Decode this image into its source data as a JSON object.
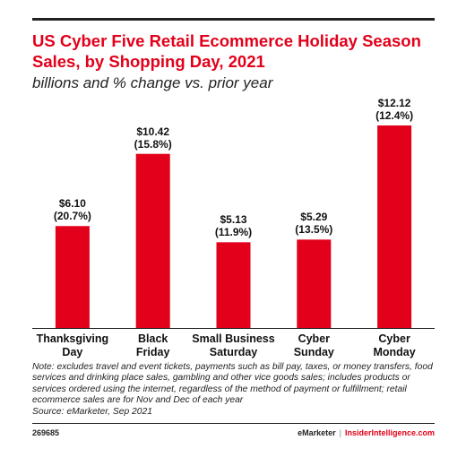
{
  "chart_data": {
    "type": "bar",
    "title": "US Cyber Five Retail Ecommerce Holiday Season Sales, by Shopping Day, 2021",
    "subtitle": "billions and % change vs. prior year",
    "categories": [
      "Thanksgiving\nDay",
      "Black\nFriday",
      "Small Business\nSaturday",
      "Cyber\nSunday",
      "Cyber\nMonday"
    ],
    "values": [
      6.1,
      10.42,
      5.13,
      5.29,
      12.12
    ],
    "value_labels": [
      "$6.10",
      "$10.42",
      "$5.13",
      "$5.29",
      "$12.12"
    ],
    "change_labels": [
      "(20.7%)",
      "(15.8%)",
      "(11.9%)",
      "(13.5%)",
      "(12.4%)"
    ],
    "ylim": [
      0,
      12.12
    ],
    "grid": false,
    "bar_color": "#e2001a"
  },
  "note": "Note: excludes travel and event tickets, payments such as bill pay, taxes, or money transfers, food services and drinking place sales, gambling and other vice goods sales; includes products or services ordered using the internet, regardless of the method of payment or fulfillment; retail ecommerce sales are for Nov and Dec of each year",
  "source": "Source: eMarketer, Sep 2021",
  "chart_id": "269685",
  "brand": {
    "emarketer": "eMarketer",
    "separator": "|",
    "insider": "InsiderIntelligence.com"
  }
}
